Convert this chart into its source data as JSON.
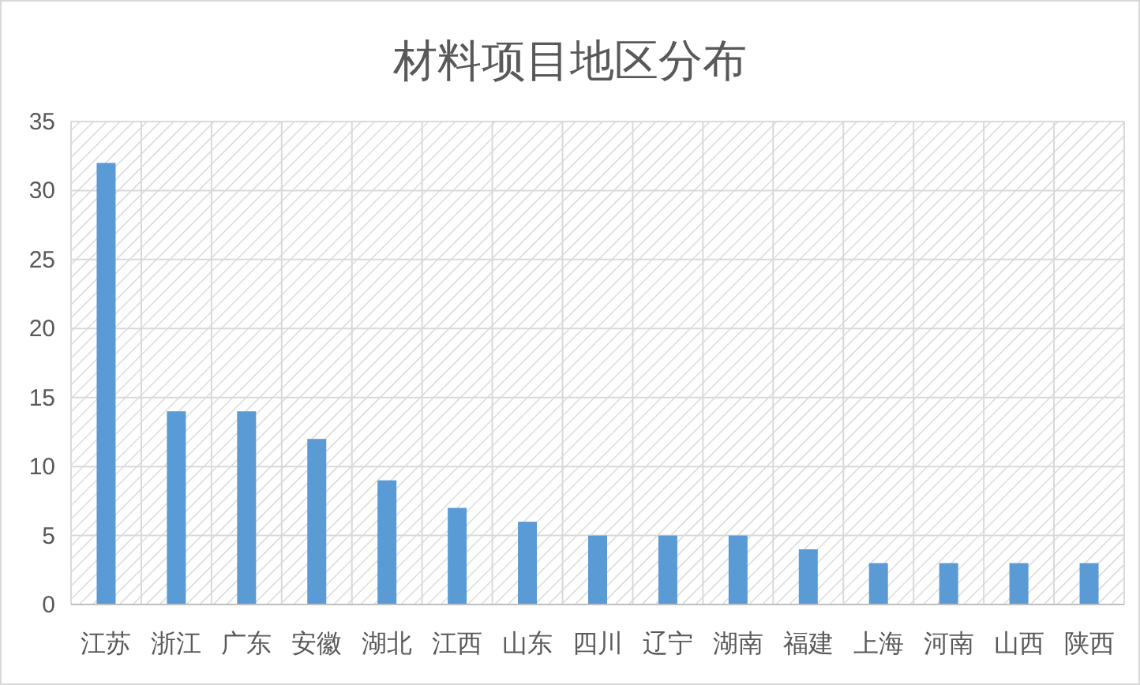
{
  "chart_data": {
    "type": "bar",
    "title": "材料项目地区分布",
    "categories": [
      "江苏",
      "浙江",
      "广东",
      "安徽",
      "湖北",
      "江西",
      "山东",
      "四川",
      "辽宁",
      "湖南",
      "福建",
      "上海",
      "河南",
      "山西",
      "陕西"
    ],
    "values": [
      32,
      14,
      14,
      12,
      9,
      7,
      6,
      5,
      5,
      5,
      4,
      3,
      3,
      3,
      3
    ],
    "color": "#5b9bd5",
    "ylim": [
      0,
      35
    ],
    "yticks": [
      0,
      5,
      10,
      15,
      20,
      25,
      30,
      35
    ],
    "grid": true
  }
}
